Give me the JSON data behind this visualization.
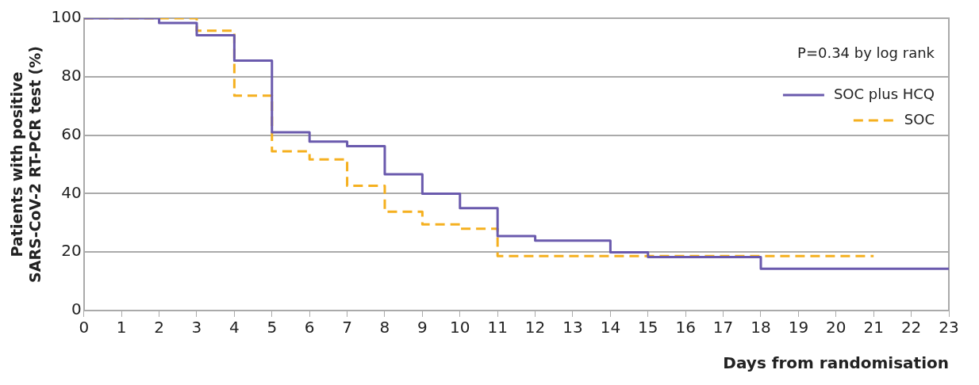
{
  "chart_data": {
    "type": "step",
    "xlabel": "Days from randomisation",
    "ylabel": "Patients with positive\nSARS-CoV-2 RT-PCR test (%)",
    "xlim": [
      0,
      23
    ],
    "xticks": [
      0,
      1,
      2,
      3,
      4,
      5,
      6,
      7,
      8,
      9,
      10,
      11,
      12,
      13,
      14,
      15,
      16,
      17,
      18,
      19,
      20,
      21,
      22,
      23
    ],
    "ylim": [
      0,
      100
    ],
    "yticks": [
      0,
      20,
      40,
      60,
      80,
      100
    ],
    "grid": "y",
    "legend": "top right",
    "marker": "none",
    "annotations": [
      "P=0.34 by log rank"
    ],
    "series": [
      {
        "name": "SOC plus HCQ",
        "color": "#6a5aad",
        "line_style": "solid",
        "x": [
          0,
          2,
          3,
          4,
          5,
          6,
          7,
          8,
          9,
          10,
          11,
          12,
          14,
          15,
          18,
          23
        ],
        "values": [
          100,
          98.4,
          94.2,
          85.5,
          61,
          57.8,
          56.2,
          46.6,
          40,
          35,
          25.5,
          23.9,
          19.9,
          18.3,
          14.3,
          14.3
        ]
      },
      {
        "name": "SOC",
        "color": "#f5b01f",
        "line_style": "dashed",
        "x": [
          0,
          3,
          4,
          5,
          6,
          7,
          8,
          9,
          10,
          11,
          21
        ],
        "values": [
          100,
          95.7,
          73.5,
          54.5,
          51.7,
          42.7,
          33.8,
          29.5,
          28,
          18.6,
          18.6
        ]
      }
    ]
  }
}
